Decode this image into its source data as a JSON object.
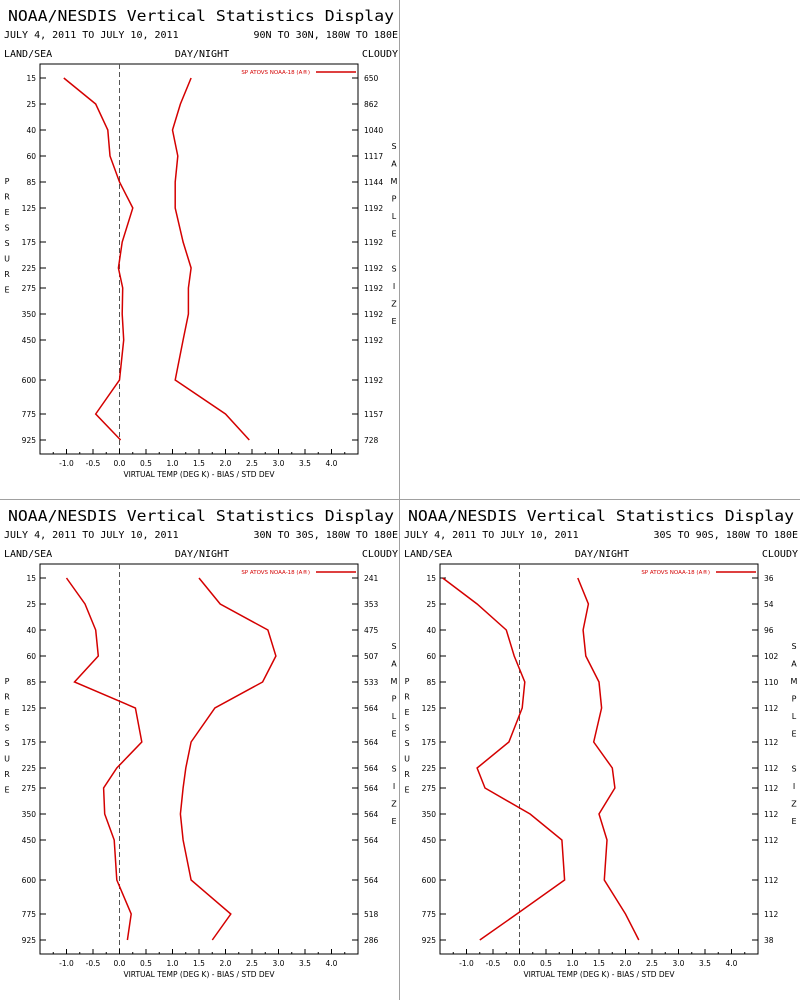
{
  "chart_data": [
    {
      "type": "line",
      "title": "NOAA/NESDIS Vertical Statistics Display",
      "date_range": "JULY 4, 2011 TO JULY 10, 2011",
      "region": "90N TO 30N, 180W TO 180E",
      "left_label": "LAND/SEA",
      "center_label": "DAY/NIGHT",
      "right_label": "CLOUDY",
      "xlabel": "VIRTUAL TEMP (DEG K) - BIAS / STD DEV",
      "ylabel": "PRESSURE",
      "y2label": "SAMPLE SIZE",
      "legend": "SP ATOVS NOAA-18 (A®)",
      "legend_position": "top-right",
      "xlim": [
        -1.5,
        4.5
      ],
      "x_ticks": [
        "-1.0",
        "-0.5",
        "0.0",
        "0.5",
        "1.0",
        "1.5",
        "2.0",
        "2.5",
        "3.0",
        "3.5",
        "4.0"
      ],
      "pressure_levels": [
        "15",
        "25",
        "40",
        "60",
        "85",
        "125",
        "175",
        "225",
        "275",
        "350",
        "450",
        "600",
        "775",
        "925"
      ],
      "sample_size": [
        "650",
        "862",
        "1040",
        "1117",
        "1144",
        "1192",
        "1192",
        "1192",
        "1192",
        "1192",
        "1192",
        "1192",
        "1157",
        "728"
      ],
      "bias": [
        -1.05,
        -0.45,
        -0.22,
        -0.18,
        0.0,
        0.25,
        0.05,
        -0.02,
        0.06,
        0.05,
        0.08,
        0.0,
        -0.45,
        0.02
      ],
      "std_dev": [
        1.35,
        1.15,
        1.0,
        1.1,
        1.05,
        1.05,
        1.2,
        1.35,
        1.3,
        1.3,
        1.2,
        1.05,
        2.0,
        2.45
      ]
    },
    {
      "type": "line",
      "title": "NOAA/NESDIS Vertical Statistics Display",
      "date_range": "JULY 4, 2011 TO JULY 10, 2011",
      "region": "30N TO 30S, 180W TO 180E",
      "left_label": "LAND/SEA",
      "center_label": "DAY/NIGHT",
      "right_label": "CLOUDY",
      "xlabel": "VIRTUAL TEMP (DEG K) - BIAS / STD DEV",
      "ylabel": "PRESSURE",
      "y2label": "SAMPLE SIZE",
      "legend": "SP ATOVS NOAA-18 (A®)",
      "legend_position": "top-right",
      "xlim": [
        -1.5,
        4.5
      ],
      "x_ticks": [
        "-1.0",
        "-0.5",
        "0.0",
        "0.5",
        "1.0",
        "1.5",
        "2.0",
        "2.5",
        "3.0",
        "3.5",
        "4.0"
      ],
      "pressure_levels": [
        "15",
        "25",
        "40",
        "60",
        "85",
        "125",
        "175",
        "225",
        "275",
        "350",
        "450",
        "600",
        "775",
        "925"
      ],
      "sample_size": [
        "241",
        "353",
        "475",
        "507",
        "533",
        "564",
        "564",
        "564",
        "564",
        "564",
        "564",
        "564",
        "518",
        "286"
      ],
      "bias": [
        -1.0,
        -0.65,
        -0.45,
        -0.4,
        -0.85,
        0.3,
        0.42,
        -0.05,
        -0.3,
        -0.28,
        -0.1,
        -0.05,
        0.22,
        0.15
      ],
      "std_dev": [
        1.5,
        1.9,
        2.8,
        2.95,
        2.7,
        1.8,
        1.35,
        1.25,
        1.2,
        1.15,
        1.2,
        1.35,
        2.1,
        1.75
      ]
    },
    {
      "type": "line",
      "title": "NOAA/NESDIS Vertical Statistics Display",
      "date_range": "JULY 4, 2011 TO JULY 10, 2011",
      "region": "30S TO 90S, 180W TO 180E",
      "left_label": "LAND/SEA",
      "center_label": "DAY/NIGHT",
      "right_label": "CLOUDY",
      "xlabel": "VIRTUAL TEMP (DEG K) - BIAS / STD DEV",
      "ylabel": "PRESSURE",
      "y2label": "SAMPLE SIZE",
      "legend": "SP ATOVS NOAA-18 (A®)",
      "legend_position": "top-right",
      "xlim": [
        -1.5,
        4.5
      ],
      "x_ticks": [
        "-1.0",
        "-0.5",
        "0.0",
        "0.5",
        "1.0",
        "1.5",
        "2.0",
        "2.5",
        "3.0",
        "3.5",
        "4.0"
      ],
      "pressure_levels": [
        "15",
        "25",
        "40",
        "60",
        "85",
        "125",
        "175",
        "225",
        "275",
        "350",
        "450",
        "600",
        "775",
        "925"
      ],
      "sample_size": [
        "36",
        "54",
        "96",
        "102",
        "110",
        "112",
        "112",
        "112",
        "112",
        "112",
        "112",
        "112",
        "112",
        "38"
      ],
      "bias": [
        -1.45,
        -0.8,
        -0.25,
        -0.1,
        0.1,
        0.05,
        -0.2,
        -0.8,
        -0.65,
        0.2,
        0.8,
        0.85,
        -0.05,
        -0.75
      ],
      "std_dev": [
        1.1,
        1.3,
        1.2,
        1.25,
        1.5,
        1.55,
        1.4,
        1.75,
        1.8,
        1.5,
        1.65,
        1.6,
        2.0,
        2.25
      ]
    }
  ],
  "colors": {
    "series": "#d40000",
    "zero_line": "#555555",
    "divider": "#a0a0a0"
  }
}
